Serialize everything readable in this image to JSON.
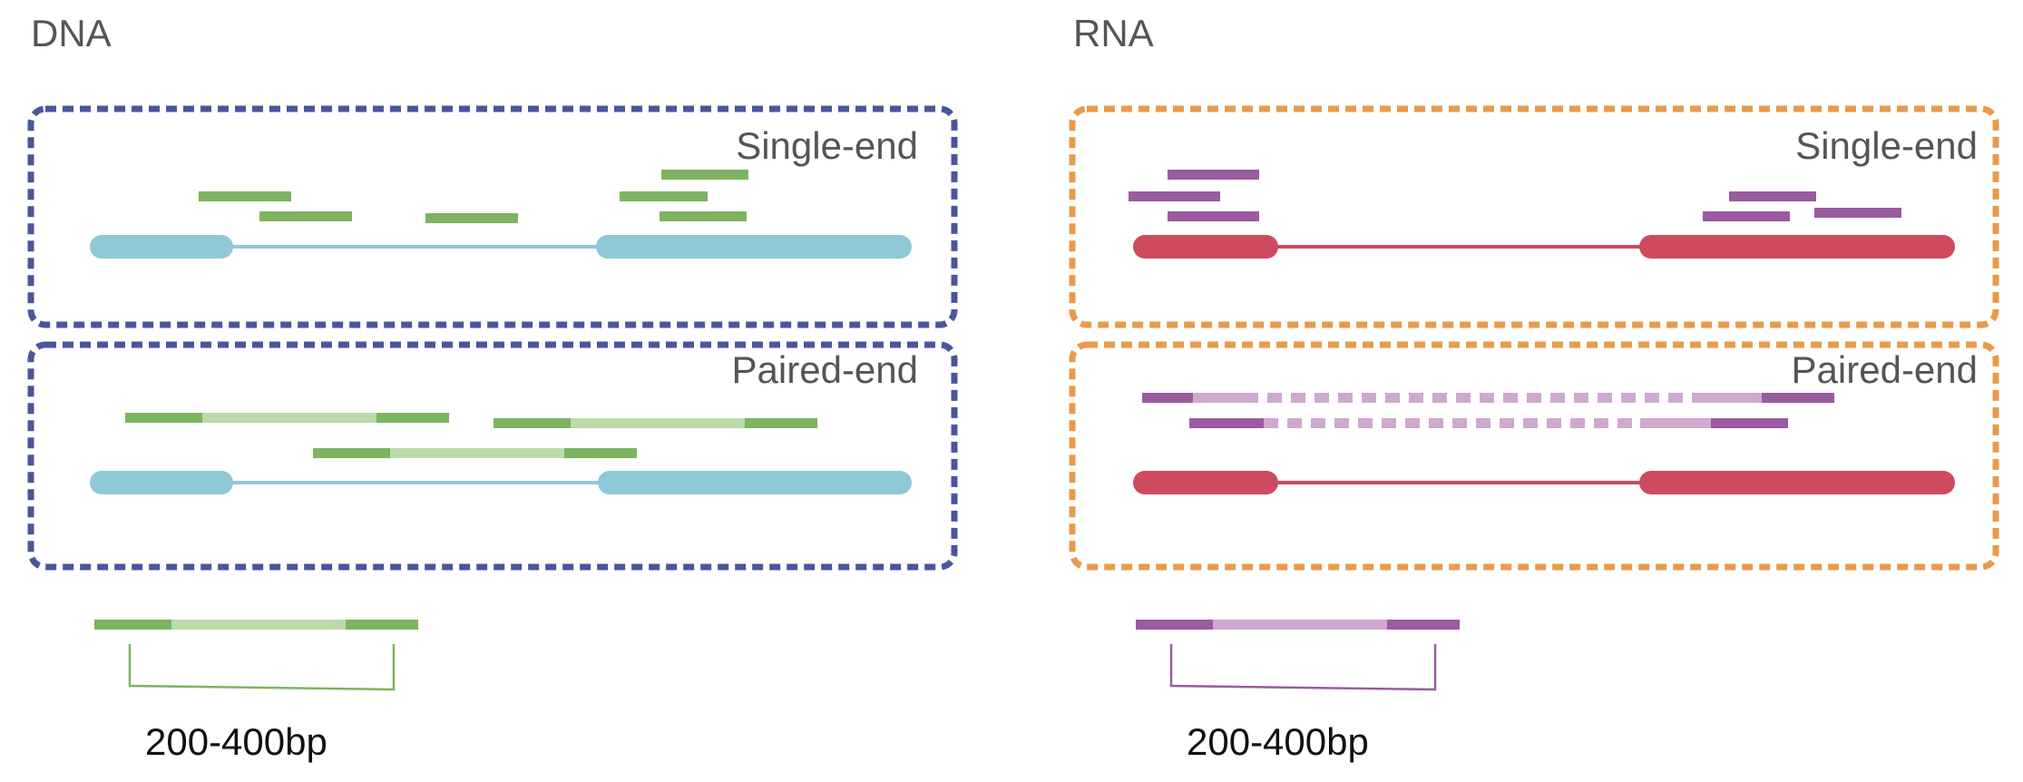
{
  "colors": {
    "dna_box": "#4b559b",
    "dna_gene": "#8fc8d6",
    "dna_read": "#7db45f",
    "dna_read_light": "#bcdaab",
    "rna_box": "#e99a4c",
    "rna_gene": "#ce4a5f",
    "rna_read": "#9a5ba0",
    "rna_read_light": "#cfa8d0",
    "title_text": "#555555",
    "size_text": "#111111"
  },
  "dna": {
    "title": "DNA",
    "single_end": {
      "label": "Single-end",
      "read_count": 6
    },
    "paired_end": {
      "label": "Paired-end",
      "pair_count": 3
    },
    "fragment": {
      "size_label": "200-400bp"
    }
  },
  "rna": {
    "title": "RNA",
    "single_end": {
      "label": "Single-end",
      "read_count": 6
    },
    "paired_end": {
      "label": "Paired-end",
      "pair_count": 2
    },
    "fragment": {
      "size_label": "200-400bp"
    }
  }
}
